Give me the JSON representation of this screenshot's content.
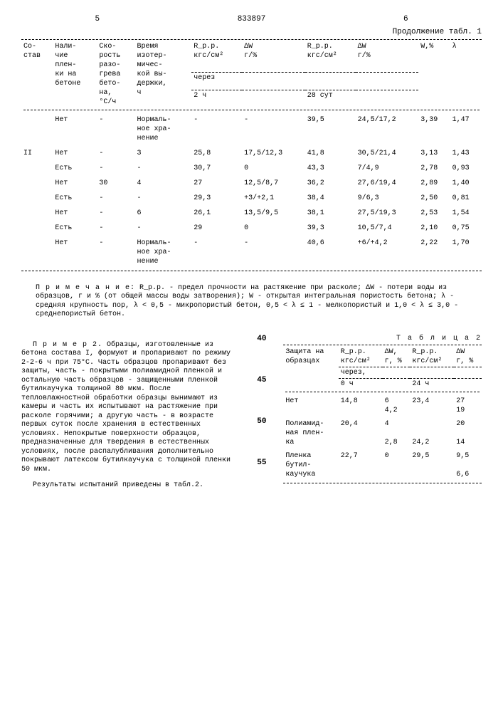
{
  "page": {
    "left_num": "5",
    "doc_num": "833897",
    "right_num": "6",
    "continuation": "Продолжение табл. 1"
  },
  "table1": {
    "headers": {
      "c1": "Со-\nстав",
      "c2": "Нали-\nчие\nплен-\nки на\nбетоне",
      "c3": "Ско-\nрость\nразо-\nгрева\nбето-\nна,\n°С/ч",
      "c4": "Время\nизотер-\nмичес-\nкой вы-\nдержки,\nч",
      "c5": "R_р.р.\nкгс/см²",
      "c6": "ΔW\nг/%",
      "c7": "R_р.р.\nкгс/см²",
      "c8": "ΔW\nг/%",
      "c9": "W,%",
      "c10": "λ",
      "mid_label": "через",
      "sub1": "2 ч",
      "sub2": "28 сут"
    },
    "rows": [
      {
        "c1": "",
        "c2": "Нет",
        "c3": "-",
        "c4": "Нормаль-\nное хра-\nнение",
        "c5": "-",
        "c6": "-",
        "c7": "39,5",
        "c8": "24,5/17,2",
        "c9": "3,39",
        "c10": "1,47"
      },
      {
        "c1": "II",
        "c2": "Нет",
        "c3": "-",
        "c4": "3",
        "c5": "25,8",
        "c6": "17,5/12,3",
        "c7": "41,8",
        "c8": "30,5/21,4",
        "c9": "3,13",
        "c10": "1,43"
      },
      {
        "c1": "",
        "c2": "Есть",
        "c3": "-",
        "c4": "-",
        "c5": "30,7",
        "c6": "0",
        "c7": "43,3",
        "c8": "7/4,9",
        "c9": "2,78",
        "c10": "0,93"
      },
      {
        "c1": "",
        "c2": "Нет",
        "c3": "30",
        "c4": "4",
        "c5": "27",
        "c6": "12,5/8,7",
        "c7": "36,2",
        "c8": "27,6/19,4",
        "c9": "2,89",
        "c10": "1,40"
      },
      {
        "c1": "",
        "c2": "Есть",
        "c3": "-",
        "c4": "-",
        "c5": "29,3",
        "c6": "+3/+2,1",
        "c7": "38,4",
        "c8": "9/6,3",
        "c9": "2,50",
        "c10": "0,81"
      },
      {
        "c1": "",
        "c2": "Нет",
        "c3": "-",
        "c4": "6",
        "c5": "26,1",
        "c6": "13,5/9,5",
        "c7": "38,1",
        "c8": "27,5/19,3",
        "c9": "2,53",
        "c10": "1,54"
      },
      {
        "c1": "",
        "c2": "Есть",
        "c3": "-",
        "c4": "-",
        "c5": "29",
        "c6": "0",
        "c7": "39,3",
        "c8": "10,5/7,4",
        "c9": "2,10",
        "c10": "0,75"
      },
      {
        "c1": "",
        "c2": "Нет",
        "c3": "-",
        "c4": "Нормаль-\nное хра-\nнение",
        "c5": "-",
        "c6": "-",
        "c7": "40,6",
        "c8": "+6/+4,2",
        "c9": "2,22",
        "c10": "1,70"
      }
    ]
  },
  "note": {
    "label": "П р и м е ч а н и е:",
    "text": "R_р.р. - предел прочности на растяжение при расколе; ΔW - потери воды из образцов, г и % (от общей массы воды затворения); W - открытая интегральная пористость бетона; λ - средняя крупность пор, λ < 0,5 - микропористый бетон, 0,5 < λ ≤ 1 - мелкопористый и 1,0 < λ ≤ 3,0 - среднепористый бетон."
  },
  "example": {
    "title": "П р и м е р 2.",
    "body": "Образцы, изготовленные из бетона состава I, формуют и пропаривают по режиму 2-2-6 ч при 75°С. Часть образцов пропаривают без защиты, часть - покрытыми полиамидной пленкой и остальную часть образцов - защищенными пленкой бутилкаучука толщиной 80 мкм. После тепловлажностной обработки образцы вынимают из камеры и часть их испытывают на растяжение при расколе горячими; а другую часть - в возрасте первых суток после хранения в естественных условиях. Непокрытые поверхности образцов, предназначенные для твердения в естественных условиях, после распалубливания дополнительно покрывают латексом бутилкаучука с толщиной пленки 50 мкм.",
    "result": "Результаты испытаний приведены в табл.2."
  },
  "line_numbers": [
    "40",
    "45",
    "50",
    "55"
  ],
  "table2": {
    "label": "Т а б л и ц а  2",
    "headers": {
      "c1": "Защита на\nобразцах",
      "c2": "R_р.р.\nкгс/см²",
      "c3": "ΔW,\nг, %",
      "c4": "R_р.р.\nкгс/см²",
      "c5": "ΔW\nг, %",
      "mid": "через,",
      "s1": "0 ч",
      "s2": "24 ч"
    },
    "rows": [
      {
        "c1": "Нет",
        "c2": "14,8",
        "c3": "6\n4,2",
        "c4": "23,4",
        "c5": "27\n19"
      },
      {
        "c1": "Полиамид-\nная плен-\nка",
        "c2": "20,4",
        "c3": "4\n\n2,8",
        "c4": "\n\n24,2",
        "c5": "20\n\n14"
      },
      {
        "c1": "Пленка\nбутил-\nкаучука",
        "c2": "22,7",
        "c3": "0",
        "c4": "29,5",
        "c5": "9,5\n\n6,6"
      }
    ]
  }
}
